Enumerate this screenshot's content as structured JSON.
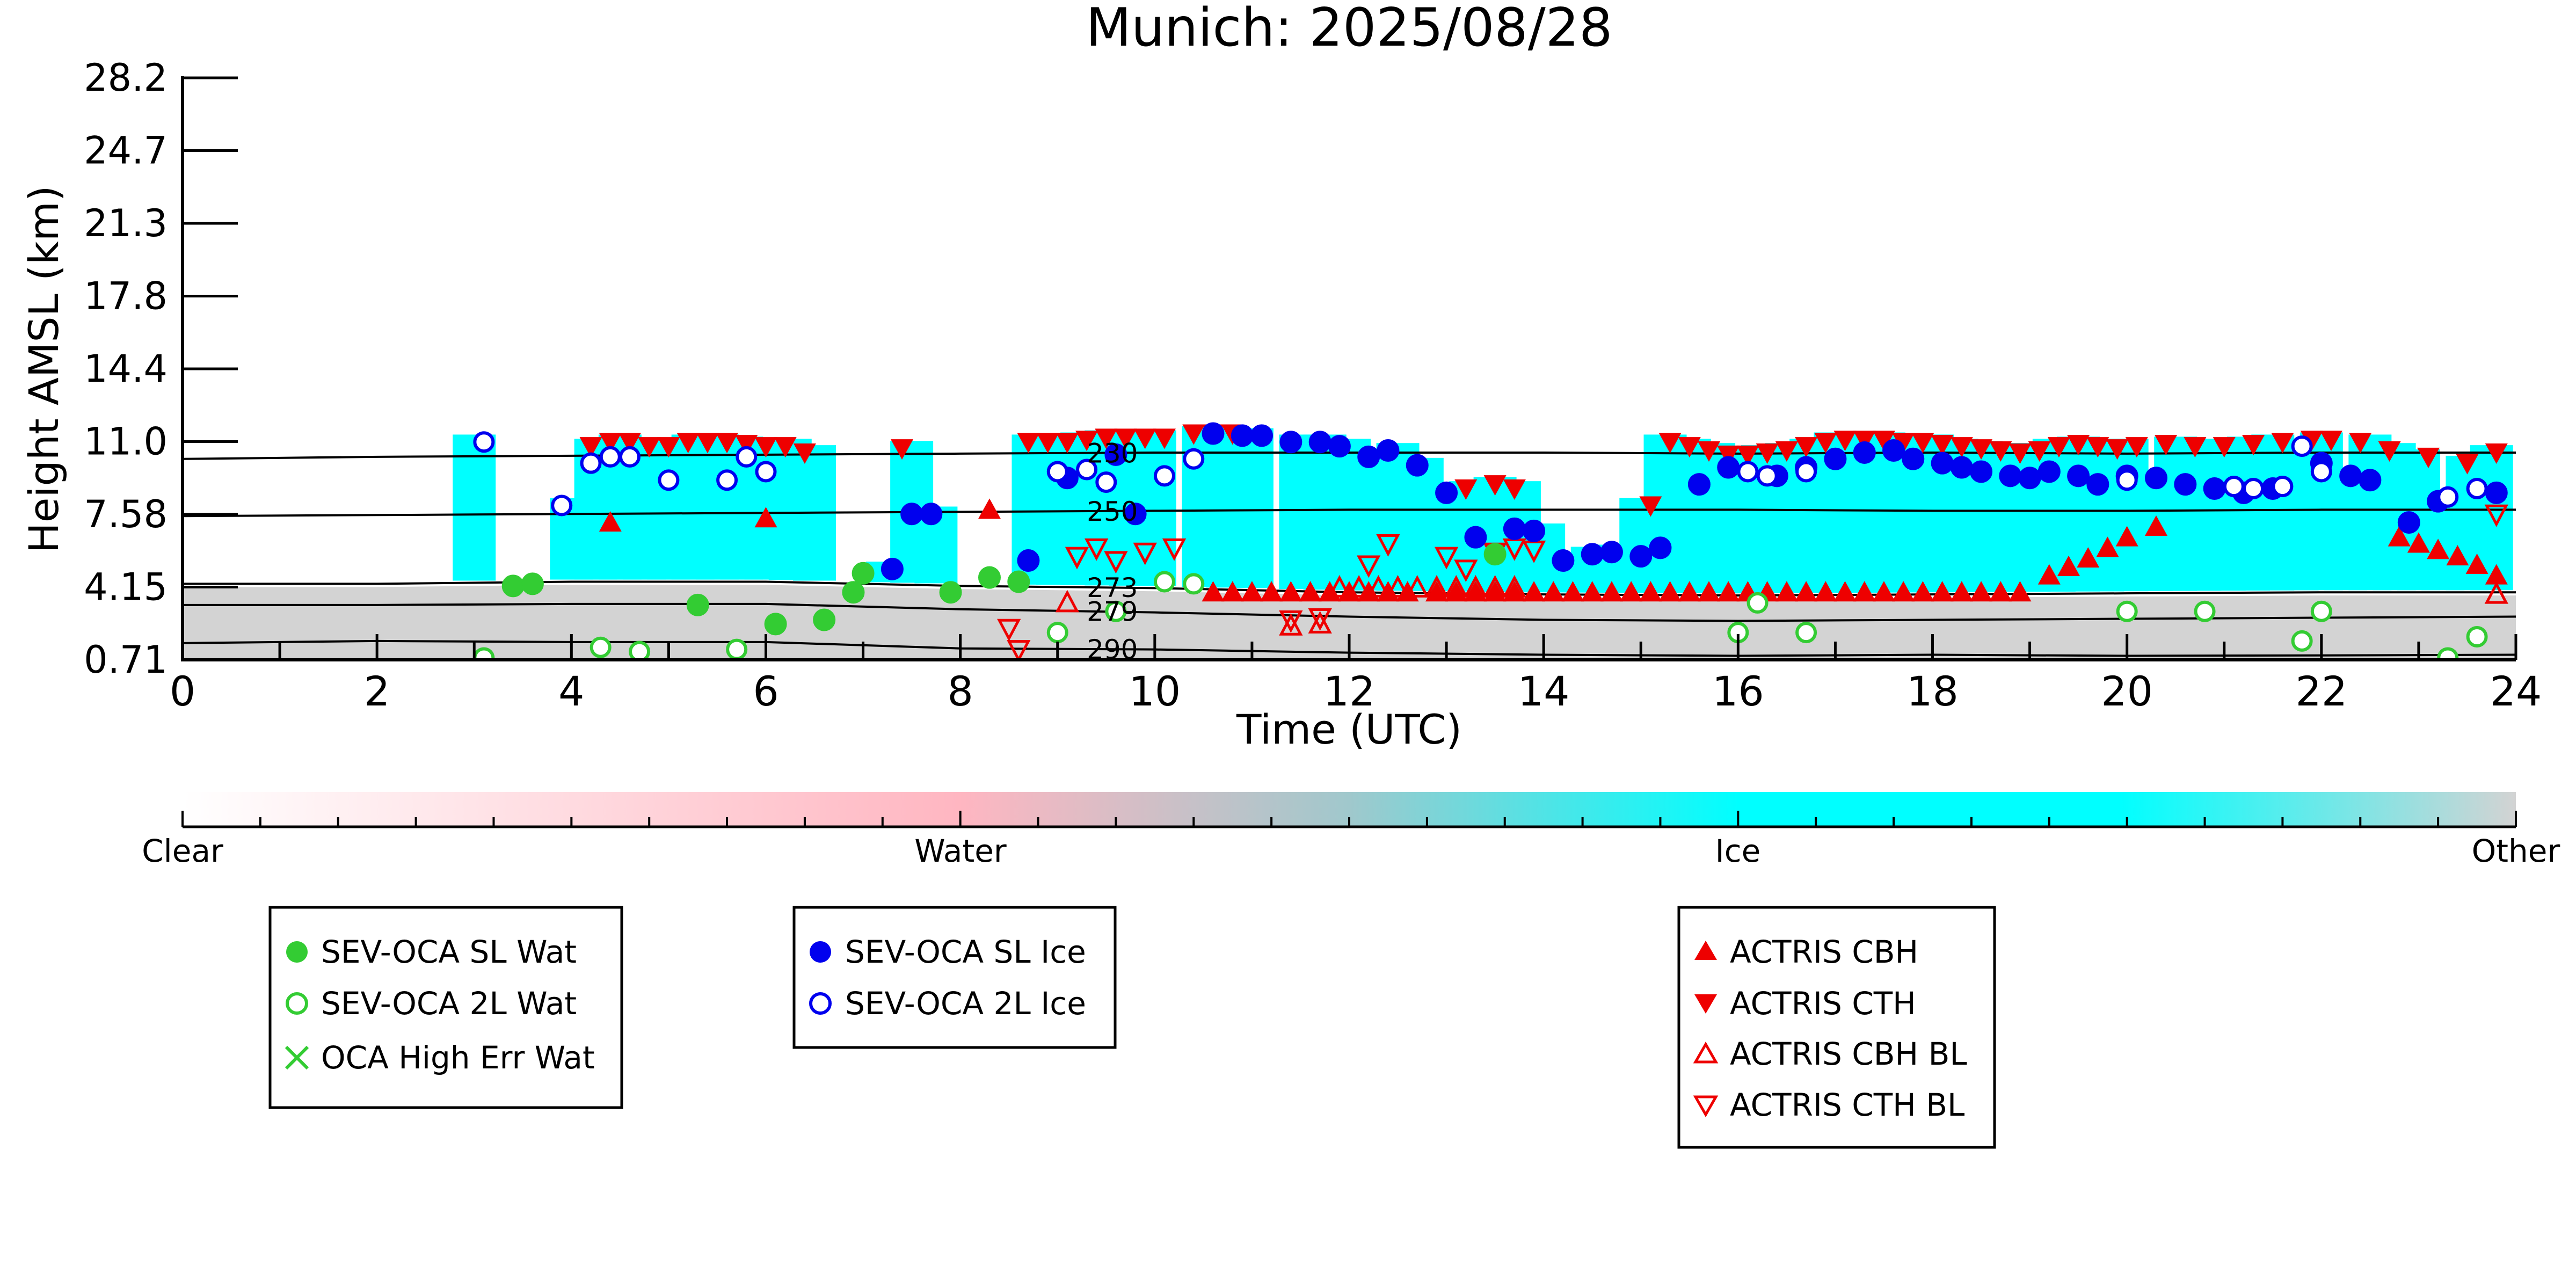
{
  "chart_data": {
    "type": "scatter",
    "title": "Munich: 2025/08/28",
    "xlabel": "Time (UTC)",
    "ylabel": "Height AMSL (km)",
    "xlim": [
      0,
      24
    ],
    "x_ticks": [
      "0",
      "2",
      "4",
      "6",
      "8",
      "10",
      "12",
      "14",
      "16",
      "18",
      "20",
      "22",
      "24"
    ],
    "y_ticks": [
      "0.71",
      "4.15",
      "7.58",
      "11.0",
      "14.4",
      "17.8",
      "21.3",
      "24.7",
      "28.2"
    ],
    "ylim": [
      0.71,
      28.2
    ],
    "grid": false,
    "colorbar": {
      "labels": [
        "Clear",
        "Water",
        "Ice",
        "Other"
      ],
      "colors": [
        "#ffffff",
        "#ffb6c1",
        "#00ffff",
        "#d3d3d3"
      ]
    },
    "isotherms": [
      {
        "label": "230",
        "values": [
          10.2,
          10.3,
          10.35,
          10.4,
          10.45,
          10.5,
          10.5,
          10.5,
          10.45,
          10.5,
          10.45,
          10.5,
          10.5
        ]
      },
      {
        "label": "250",
        "values": [
          7.5,
          7.55,
          7.6,
          7.65,
          7.7,
          7.75,
          7.8,
          7.8,
          7.8,
          7.75,
          7.75,
          7.8,
          7.8
        ]
      },
      {
        "label": "273",
        "values": [
          4.3,
          4.3,
          4.4,
          4.4,
          4.2,
          4.1,
          3.9,
          3.8,
          3.75,
          3.8,
          3.85,
          3.9,
          3.9
        ]
      },
      {
        "label": "279",
        "values": [
          3.3,
          3.3,
          3.35,
          3.35,
          3.1,
          2.95,
          2.75,
          2.6,
          2.55,
          2.6,
          2.65,
          2.7,
          2.75
        ]
      },
      {
        "label": "290",
        "values": [
          1.5,
          1.6,
          1.55,
          1.55,
          1.25,
          1.2,
          1.05,
          0.95,
          0.9,
          0.95,
          0.9,
          0.92,
          0.95
        ]
      }
    ],
    "series": [
      {
        "name": "SEV-OCA SL Wat",
        "color": "#33cc33",
        "marker": "filled-circle",
        "x": [
          3.4,
          3.6,
          5.3,
          6.1,
          6.6,
          6.9,
          7.0,
          7.9,
          8.3,
          8.6,
          13.5
        ],
        "y": [
          4.2,
          4.3,
          3.3,
          2.4,
          2.6,
          3.9,
          4.8,
          3.9,
          4.6,
          4.4,
          5.7
        ]
      },
      {
        "name": "SEV-OCA 2L Wat",
        "color": "#33cc33",
        "marker": "open-circle",
        "x": [
          3.1,
          4.3,
          4.7,
          5.7,
          9.0,
          9.6,
          10.1,
          10.4,
          16.0,
          16.2,
          16.7,
          20.0,
          20.8,
          21.8,
          22.0,
          23.3,
          23.6
        ],
        "y": [
          0.8,
          1.3,
          1.1,
          1.2,
          2.0,
          3.0,
          4.4,
          4.3,
          2.0,
          3.4,
          2.0,
          3.0,
          3.0,
          1.6,
          3.0,
          0.8,
          1.8
        ]
      },
      {
        "name": "OCA High Err Wat",
        "color": "#33cc33",
        "marker": "x",
        "x": [],
        "y": []
      },
      {
        "name": "SEV-OCA SL Ice",
        "color": "#0000ee",
        "marker": "filled-circle",
        "x": [
          7.3,
          7.5,
          7.7,
          8.7,
          9.1,
          9.6,
          9.8,
          10.6,
          10.9,
          11.1,
          11.4,
          11.7,
          11.9,
          12.2,
          12.4,
          12.7,
          13.0,
          13.3,
          13.7,
          13.9,
          14.2,
          14.5,
          14.7,
          15.0,
          15.2,
          15.6,
          15.9,
          16.4,
          16.7,
          17.0,
          17.3,
          17.6,
          17.8,
          18.1,
          18.3,
          18.5,
          18.8,
          19.0,
          19.2,
          19.5,
          19.7,
          20.0,
          20.3,
          20.6,
          20.9,
          21.2,
          21.5,
          22.0,
          22.3,
          22.5,
          22.9,
          23.2,
          23.8
        ],
        "y": [
          5.0,
          7.6,
          7.6,
          5.4,
          9.3,
          10.4,
          7.6,
          11.4,
          11.3,
          11.3,
          11.0,
          11.0,
          10.8,
          10.3,
          10.6,
          9.9,
          8.6,
          6.5,
          6.9,
          6.8,
          5.4,
          5.7,
          5.8,
          5.6,
          6.0,
          9.0,
          9.8,
          9.4,
          9.8,
          10.2,
          10.5,
          10.6,
          10.2,
          10.0,
          9.8,
          9.6,
          9.4,
          9.3,
          9.6,
          9.4,
          9.0,
          9.4,
          9.3,
          9.0,
          8.8,
          8.6,
          8.8,
          10.0,
          9.4,
          9.2,
          7.2,
          8.2,
          8.6
        ]
      },
      {
        "name": "SEV-OCA 2L Ice",
        "color": "#0000ee",
        "marker": "open-circle",
        "x": [
          3.1,
          3.9,
          4.2,
          4.4,
          4.6,
          5.0,
          5.6,
          5.8,
          6.0,
          9.0,
          9.3,
          9.5,
          10.1,
          10.4,
          16.1,
          16.3,
          16.7,
          20.0,
          21.1,
          21.3,
          21.6,
          21.8,
          22.0,
          23.3,
          23.6
        ],
        "y": [
          11.0,
          8.0,
          10.0,
          10.3,
          10.3,
          9.2,
          9.2,
          10.3,
          9.6,
          9.6,
          9.7,
          9.1,
          9.4,
          10.2,
          9.6,
          9.4,
          9.6,
          9.2,
          8.9,
          8.8,
          8.9,
          10.8,
          9.6,
          8.4,
          8.8
        ]
      },
      {
        "name": "ACTRIS CBH",
        "color": "#ee0000",
        "marker": "triangle-up",
        "x": [
          4.4,
          6.0,
          8.3,
          10.6,
          10.8,
          11.0,
          11.2,
          11.4,
          11.6,
          11.8,
          12.0,
          12.2,
          12.4,
          12.6,
          12.9,
          13.1,
          13.3,
          13.5,
          13.7,
          13.9,
          14.1,
          14.3,
          14.5,
          14.7,
          14.9,
          15.1,
          15.3,
          15.5,
          15.7,
          15.9,
          16.1,
          16.3,
          16.5,
          16.7,
          16.9,
          17.1,
          17.3,
          17.5,
          17.7,
          17.9,
          18.1,
          18.3,
          18.5,
          18.7,
          18.9,
          19.2,
          19.4,
          19.6,
          19.8,
          20.0,
          20.3,
          22.8,
          23.0,
          23.2,
          23.4,
          23.6,
          23.8
        ],
        "y": [
          7.2,
          7.4,
          7.8,
          3.9,
          3.9,
          3.9,
          3.9,
          3.9,
          3.9,
          3.9,
          3.9,
          3.9,
          3.9,
          3.9,
          3.9,
          3.9,
          3.9,
          3.9,
          3.9,
          3.9,
          3.9,
          3.9,
          3.9,
          3.9,
          3.9,
          3.9,
          3.9,
          3.9,
          3.9,
          3.9,
          3.9,
          3.9,
          3.9,
          3.9,
          3.9,
          3.9,
          3.9,
          3.9,
          3.9,
          3.9,
          3.9,
          3.9,
          3.9,
          3.9,
          3.9,
          4.7,
          5.1,
          5.5,
          6.0,
          6.5,
          7.0,
          6.5,
          6.2,
          5.9,
          5.6,
          5.2,
          4.7
        ]
      },
      {
        "name": "ACTRIS CTH",
        "color": "#ee0000",
        "marker": "triangle-down",
        "x": [
          4.2,
          4.4,
          4.6,
          4.8,
          5.0,
          5.2,
          5.4,
          5.6,
          5.8,
          6.0,
          6.2,
          6.4,
          7.4,
          8.7,
          8.9,
          9.1,
          9.3,
          9.5,
          9.7,
          9.9,
          10.1,
          10.4,
          10.6,
          10.8,
          13.2,
          13.5,
          13.7,
          15.1,
          15.3,
          15.5,
          15.7,
          15.9,
          16.1,
          16.3,
          16.5,
          16.7,
          16.9,
          17.1,
          17.3,
          17.5,
          17.7,
          17.9,
          18.1,
          18.3,
          18.5,
          18.7,
          18.9,
          19.1,
          19.3,
          19.5,
          19.7,
          19.9,
          20.1,
          20.4,
          20.7,
          21.0,
          21.3,
          21.6,
          21.9,
          22.1,
          22.4,
          22.7,
          23.1,
          23.5,
          23.8
        ],
        "y": [
          10.8,
          11.0,
          11.0,
          10.8,
          10.8,
          11.0,
          11.0,
          11.0,
          10.9,
          10.8,
          10.8,
          10.5,
          10.7,
          11.0,
          11.0,
          11.0,
          11.1,
          11.2,
          11.2,
          11.2,
          11.2,
          11.4,
          11.4,
          11.4,
          8.8,
          9.0,
          8.8,
          8.0,
          11.0,
          10.8,
          10.6,
          10.4,
          10.4,
          10.5,
          10.6,
          10.8,
          11.0,
          11.1,
          11.1,
          11.1,
          11.0,
          11.0,
          10.9,
          10.8,
          10.7,
          10.6,
          10.5,
          10.6,
          10.8,
          10.9,
          10.8,
          10.7,
          10.8,
          10.9,
          10.8,
          10.8,
          10.9,
          11.0,
          11.1,
          11.1,
          11.0,
          10.6,
          10.3,
          10.0,
          10.5
        ]
      },
      {
        "name": "ACTRIS CBH BL",
        "color": "#ee0000",
        "marker": "open-triangle-up",
        "x": [
          9.1,
          11.4,
          11.7,
          11.9,
          12.1,
          12.3,
          12.5,
          12.7,
          12.9,
          13.1,
          13.3,
          13.5,
          13.7,
          23.8
        ],
        "y": [
          3.4,
          2.3,
          2.4,
          4.1,
          4.1,
          4.1,
          4.1,
          4.1,
          4.1,
          4.1,
          4.1,
          4.1,
          4.1,
          3.8
        ]
      },
      {
        "name": "ACTRIS CTH BL",
        "color": "#ee0000",
        "marker": "open-triangle-down",
        "x": [
          8.5,
          8.6,
          9.2,
          9.4,
          9.6,
          9.9,
          10.2,
          11.4,
          11.7,
          12.2,
          12.4,
          13.0,
          13.2,
          13.5,
          13.7,
          13.9,
          23.8
        ],
        "y": [
          2.2,
          1.2,
          5.6,
          6.0,
          5.4,
          5.8,
          6.0,
          2.6,
          2.7,
          5.2,
          6.2,
          5.6,
          5.0,
          5.8,
          6.0,
          5.9,
          7.6
        ]
      }
    ]
  }
}
